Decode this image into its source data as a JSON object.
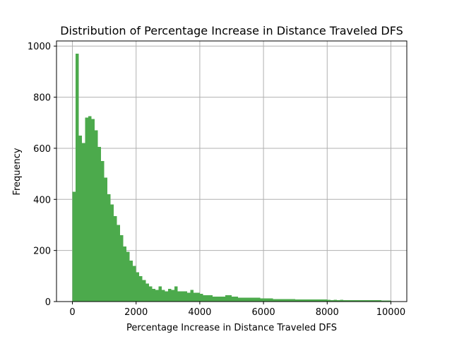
{
  "chart_data": {
    "type": "bar",
    "title": "Distribution of Percentage Increase in Distance Traveled DFS",
    "xlabel": "Percentage Increase in Distance Traveled DFS",
    "ylabel": "Frequency",
    "xlim": [
      -500,
      10500
    ],
    "ylim": [
      0,
      1020
    ],
    "xticks": [
      0,
      2000,
      4000,
      6000,
      8000,
      10000
    ],
    "yticks": [
      0,
      200,
      400,
      600,
      800,
      1000
    ],
    "grid": true,
    "bar_color": "#4CAA4C",
    "bin_width": 100,
    "bin_start": 0,
    "values": [
      430,
      970,
      650,
      620,
      720,
      725,
      715,
      670,
      605,
      550,
      485,
      420,
      380,
      335,
      300,
      260,
      215,
      195,
      160,
      140,
      115,
      100,
      85,
      70,
      60,
      50,
      45,
      60,
      45,
      40,
      50,
      45,
      60,
      40,
      40,
      40,
      35,
      45,
      35,
      35,
      30,
      25,
      25,
      25,
      20,
      20,
      20,
      20,
      25,
      25,
      20,
      20,
      15,
      15,
      15,
      15,
      15,
      15,
      15,
      12,
      12,
      12,
      12,
      10,
      10,
      10,
      10,
      10,
      10,
      10,
      8,
      8,
      8,
      8,
      8,
      8,
      8,
      8,
      8,
      8,
      7,
      6,
      7,
      6,
      7,
      6,
      6,
      6,
      6,
      5,
      5,
      5,
      5,
      5,
      5,
      5,
      5,
      4,
      4,
      4
    ]
  }
}
